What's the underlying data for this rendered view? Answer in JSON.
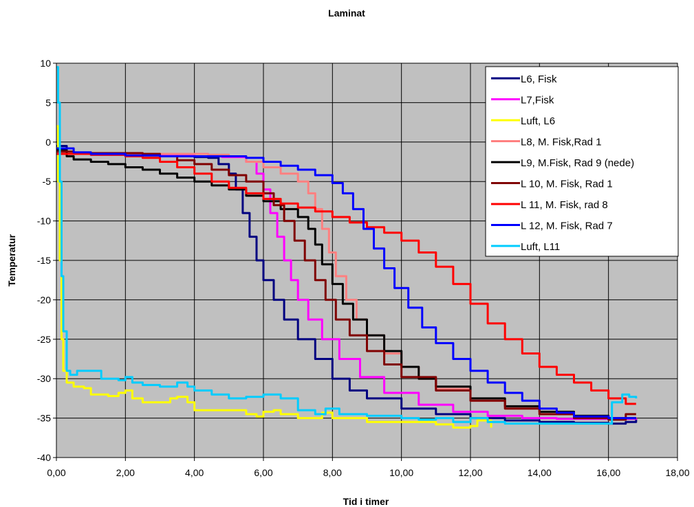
{
  "chart_data": {
    "type": "line",
    "title": "Laminat",
    "xlabel": "Tid i timer",
    "ylabel": "Temperatur",
    "xlim": [
      0,
      18
    ],
    "ylim": [
      -40,
      10
    ],
    "x_ticks": [
      "0,00",
      "2,00",
      "4,00",
      "6,00",
      "8,00",
      "10,00",
      "12,00",
      "14,00",
      "16,00",
      "18,00"
    ],
    "y_ticks": [
      "10",
      "5",
      "0",
      "-5",
      "-10",
      "-15",
      "-20",
      "-25",
      "-30",
      "-35",
      "-40"
    ],
    "grid": true,
    "legend_position": "top-right",
    "plot_background": "#c0c0c0",
    "series": [
      {
        "name": "L6, Fisk",
        "color": "#000080",
        "points": [
          [
            0,
            -0.5
          ],
          [
            0.3,
            -1.5
          ],
          [
            1,
            -1.6
          ],
          [
            2,
            -1.7
          ],
          [
            3,
            -1.8
          ],
          [
            4,
            -1.9
          ],
          [
            4.4,
            -2
          ],
          [
            4.7,
            -2.8
          ],
          [
            5,
            -4
          ],
          [
            5.2,
            -6
          ],
          [
            5.4,
            -9
          ],
          [
            5.6,
            -12
          ],
          [
            5.8,
            -15
          ],
          [
            6,
            -17.5
          ],
          [
            6.3,
            -20
          ],
          [
            6.6,
            -22.5
          ],
          [
            7,
            -25
          ],
          [
            7.5,
            -27.5
          ],
          [
            8,
            -30
          ],
          [
            8.5,
            -31.5
          ],
          [
            9,
            -32.5
          ],
          [
            10,
            -33.8
          ],
          [
            11,
            -34.5
          ],
          [
            12,
            -35
          ],
          [
            13,
            -35.3
          ],
          [
            14,
            -35.5
          ],
          [
            15,
            -35.6
          ],
          [
            16,
            -35.7
          ],
          [
            16.5,
            -35.5
          ],
          [
            16.8,
            -35.1
          ]
        ]
      },
      {
        "name": "L7,Fisk",
        "color": "#ff00ff",
        "points": [
          [
            0,
            -0.8
          ],
          [
            0.3,
            -1.4
          ],
          [
            1,
            -1.5
          ],
          [
            2,
            -1.6
          ],
          [
            3,
            -1.7
          ],
          [
            4,
            -1.8
          ],
          [
            4.8,
            -1.9
          ],
          [
            5.5,
            -2.5
          ],
          [
            5.8,
            -4
          ],
          [
            6,
            -6
          ],
          [
            6.2,
            -9
          ],
          [
            6.4,
            -12
          ],
          [
            6.6,
            -15
          ],
          [
            6.8,
            -17.5
          ],
          [
            7,
            -20
          ],
          [
            7.3,
            -22.5
          ],
          [
            7.7,
            -25
          ],
          [
            8.2,
            -27.5
          ],
          [
            8.8,
            -29.8
          ],
          [
            9.5,
            -31.8
          ],
          [
            10.5,
            -33.3
          ],
          [
            11.5,
            -34.2
          ],
          [
            12.5,
            -34.7
          ],
          [
            13.5,
            -35
          ],
          [
            14.5,
            -35.1
          ],
          [
            15.5,
            -35.1
          ],
          [
            16.5,
            -35.1
          ],
          [
            16.8,
            -35
          ]
        ]
      },
      {
        "name": "Luft, L6",
        "color": "#ffff00",
        "points": [
          [
            0,
            2
          ],
          [
            0.05,
            -5
          ],
          [
            0.1,
            -15
          ],
          [
            0.15,
            -25
          ],
          [
            0.2,
            -29
          ],
          [
            0.3,
            -30.5
          ],
          [
            0.5,
            -31
          ],
          [
            0.8,
            -31.2
          ],
          [
            1,
            -32
          ],
          [
            1.5,
            -32.2
          ],
          [
            1.8,
            -31.8
          ],
          [
            2,
            -31.5
          ],
          [
            2.2,
            -32.5
          ],
          [
            2.5,
            -33
          ],
          [
            3,
            -33
          ],
          [
            3.3,
            -32.5
          ],
          [
            3.5,
            -32.3
          ],
          [
            3.8,
            -33
          ],
          [
            4,
            -34
          ],
          [
            5,
            -34
          ],
          [
            5.5,
            -34.5
          ],
          [
            5.8,
            -34.8
          ],
          [
            6,
            -34.2
          ],
          [
            6.3,
            -34
          ],
          [
            6.5,
            -34.5
          ],
          [
            7,
            -35
          ],
          [
            7.5,
            -35
          ],
          [
            7.7,
            -34.3
          ],
          [
            8,
            -35
          ],
          [
            8.5,
            -35
          ],
          [
            9,
            -35.5
          ],
          [
            9.5,
            -35.5
          ],
          [
            10,
            -35.5
          ],
          [
            10.5,
            -35.5
          ],
          [
            11,
            -35.8
          ],
          [
            11.5,
            -36.2
          ],
          [
            12,
            -36
          ],
          [
            12.2,
            -35.3
          ],
          [
            12.6,
            -36.2
          ]
        ]
      },
      {
        "name": "L8, M. Fisk,Rad 1",
        "color": "#ff8080",
        "points": [
          [
            0,
            -1.4
          ],
          [
            1,
            -1.5
          ],
          [
            2,
            -1.5
          ],
          [
            3,
            -1.5
          ],
          [
            4,
            -1.5
          ],
          [
            4.4,
            -1.6
          ],
          [
            5,
            -1.8
          ],
          [
            5.5,
            -2.5
          ],
          [
            6,
            -3.2
          ],
          [
            6.5,
            -4
          ],
          [
            7,
            -5
          ],
          [
            7.3,
            -6.5
          ],
          [
            7.5,
            -8.5
          ],
          [
            7.7,
            -11
          ],
          [
            7.9,
            -14
          ],
          [
            8.1,
            -17
          ],
          [
            8.4,
            -20
          ],
          [
            8.7,
            -22.5
          ],
          [
            9,
            -24.5
          ],
          [
            9.5,
            -26.8
          ],
          [
            10,
            -28.5
          ],
          [
            10.5,
            -30
          ],
          [
            11,
            -31.3
          ],
          [
            12,
            -32.8
          ],
          [
            13,
            -33.8
          ],
          [
            14,
            -34.5
          ],
          [
            15,
            -34.8
          ],
          [
            16,
            -35
          ],
          [
            16.8,
            -35
          ]
        ]
      },
      {
        "name": "L9, M.Fisk, Rad 9 (nede)",
        "color": "#000000",
        "points": [
          [
            0,
            -1
          ],
          [
            0.3,
            -1.8
          ],
          [
            0.5,
            -2.2
          ],
          [
            1,
            -2.5
          ],
          [
            1.5,
            -2.8
          ],
          [
            2,
            -3.2
          ],
          [
            2.5,
            -3.5
          ],
          [
            3,
            -4
          ],
          [
            3.5,
            -4.5
          ],
          [
            4,
            -5
          ],
          [
            4.5,
            -5.5
          ],
          [
            5,
            -6
          ],
          [
            5.5,
            -6.8
          ],
          [
            6,
            -7.5
          ],
          [
            6.5,
            -8.5
          ],
          [
            7,
            -9.5
          ],
          [
            7.3,
            -11
          ],
          [
            7.5,
            -13
          ],
          [
            7.7,
            -15.5
          ],
          [
            8,
            -18
          ],
          [
            8.3,
            -20.5
          ],
          [
            8.6,
            -22.5
          ],
          [
            9,
            -24.5
          ],
          [
            9.5,
            -26.5
          ],
          [
            10,
            -28.5
          ],
          [
            10.5,
            -30
          ],
          [
            11,
            -31
          ],
          [
            12,
            -32.5
          ],
          [
            13,
            -33.5
          ],
          [
            14,
            -34.2
          ],
          [
            15,
            -34.7
          ],
          [
            16,
            -35
          ],
          [
            16.8,
            -35
          ]
        ]
      },
      {
        "name": "L 10, M. Fisk, Rad 1",
        "color": "#800000",
        "points": [
          [
            0,
            -1.2
          ],
          [
            0.5,
            -1.4
          ],
          [
            1,
            -1.4
          ],
          [
            2,
            -1.4
          ],
          [
            2.5,
            -1.5
          ],
          [
            3,
            -1.8
          ],
          [
            3.5,
            -2.3
          ],
          [
            4,
            -2.8
          ],
          [
            4.5,
            -3.5
          ],
          [
            5,
            -4.2
          ],
          [
            5.5,
            -5
          ],
          [
            6,
            -6.5
          ],
          [
            6.3,
            -8
          ],
          [
            6.6,
            -10
          ],
          [
            6.9,
            -12.5
          ],
          [
            7.2,
            -15
          ],
          [
            7.5,
            -17.5
          ],
          [
            7.8,
            -20
          ],
          [
            8.1,
            -22.5
          ],
          [
            8.5,
            -24.5
          ],
          [
            9,
            -26.5
          ],
          [
            9.5,
            -28.2
          ],
          [
            10,
            -29.8
          ],
          [
            11,
            -31.5
          ],
          [
            12,
            -32.8
          ],
          [
            13,
            -33.8
          ],
          [
            14,
            -34.5
          ],
          [
            15,
            -35
          ],
          [
            16,
            -35.2
          ],
          [
            16.5,
            -34.5
          ],
          [
            16.8,
            -34.5
          ]
        ]
      },
      {
        "name": "L 11, M. Fisk, rad 8",
        "color": "#ff0000",
        "points": [
          [
            0,
            -1.5
          ],
          [
            0.5,
            -1.5
          ],
          [
            1,
            -1.6
          ],
          [
            2,
            -1.8
          ],
          [
            2.5,
            -2
          ],
          [
            3,
            -2.5
          ],
          [
            3.5,
            -3.2
          ],
          [
            4,
            -4
          ],
          [
            4.5,
            -5
          ],
          [
            5,
            -5.8
          ],
          [
            5.5,
            -6.5
          ],
          [
            6,
            -7.2
          ],
          [
            6.5,
            -7.8
          ],
          [
            7,
            -8.3
          ],
          [
            7.5,
            -8.8
          ],
          [
            8,
            -9.5
          ],
          [
            8.5,
            -10.2
          ],
          [
            9,
            -10.8
          ],
          [
            9.5,
            -11.5
          ],
          [
            10,
            -12.5
          ],
          [
            10.5,
            -14
          ],
          [
            11,
            -15.8
          ],
          [
            11.5,
            -18
          ],
          [
            12,
            -20.5
          ],
          [
            12.5,
            -23
          ],
          [
            13,
            -25
          ],
          [
            13.5,
            -26.8
          ],
          [
            14,
            -28.5
          ],
          [
            14.5,
            -29.5
          ],
          [
            15,
            -30.5
          ],
          [
            15.5,
            -31.5
          ],
          [
            16,
            -32.5
          ],
          [
            16.5,
            -33.2
          ],
          [
            16.8,
            -33.2
          ]
        ]
      },
      {
        "name": "L 12, M. Fisk, Rad 7",
        "color": "#0000ff",
        "points": [
          [
            0,
            -0.8
          ],
          [
            0.5,
            -1.3
          ],
          [
            1,
            -1.5
          ],
          [
            2,
            -1.7
          ],
          [
            3,
            -1.8
          ],
          [
            4,
            -1.8
          ],
          [
            5,
            -1.8
          ],
          [
            5.5,
            -2
          ],
          [
            6,
            -2.5
          ],
          [
            6.5,
            -3
          ],
          [
            7,
            -3.5
          ],
          [
            7.5,
            -4.2
          ],
          [
            8,
            -5.2
          ],
          [
            8.3,
            -6.5
          ],
          [
            8.6,
            -8.5
          ],
          [
            8.9,
            -11
          ],
          [
            9.2,
            -13.5
          ],
          [
            9.5,
            -16
          ],
          [
            9.8,
            -18.5
          ],
          [
            10.2,
            -21
          ],
          [
            10.6,
            -23.5
          ],
          [
            11,
            -25.5
          ],
          [
            11.5,
            -27.5
          ],
          [
            12,
            -29
          ],
          [
            12.5,
            -30.5
          ],
          [
            13,
            -31.8
          ],
          [
            13.5,
            -32.8
          ],
          [
            14,
            -33.8
          ],
          [
            14.5,
            -34.3
          ],
          [
            15,
            -34.8
          ],
          [
            16,
            -35
          ],
          [
            16.8,
            -35
          ]
        ]
      },
      {
        "name": "Luft, L11",
        "color": "#00ccff",
        "points": [
          [
            0,
            9.5
          ],
          [
            0.05,
            5
          ],
          [
            0.1,
            -5
          ],
          [
            0.15,
            -17
          ],
          [
            0.2,
            -24
          ],
          [
            0.3,
            -29
          ],
          [
            0.4,
            -29.5
          ],
          [
            0.6,
            -29
          ],
          [
            1,
            -29
          ],
          [
            1.3,
            -30
          ],
          [
            1.8,
            -30.2
          ],
          [
            2,
            -29.8
          ],
          [
            2.2,
            -30.5
          ],
          [
            2.5,
            -30.8
          ],
          [
            3,
            -31
          ],
          [
            3.5,
            -30.5
          ],
          [
            3.8,
            -31
          ],
          [
            4,
            -31.5
          ],
          [
            4.5,
            -32
          ],
          [
            5,
            -32.5
          ],
          [
            5.5,
            -32.3
          ],
          [
            6,
            -32
          ],
          [
            6.5,
            -32.5
          ],
          [
            7,
            -34
          ],
          [
            7.5,
            -34.5
          ],
          [
            7.8,
            -33.8
          ],
          [
            8.2,
            -34.5
          ],
          [
            9,
            -34.7
          ],
          [
            10,
            -35
          ],
          [
            10.5,
            -35.2
          ],
          [
            11,
            -35
          ],
          [
            11.5,
            -35.5
          ],
          [
            12,
            -35
          ],
          [
            12.5,
            -35.5
          ],
          [
            13,
            -35.7
          ],
          [
            14,
            -35.7
          ],
          [
            15,
            -35.7
          ],
          [
            15.9,
            -35.7
          ],
          [
            16.1,
            -33
          ],
          [
            16.4,
            -32
          ],
          [
            16.6,
            -32.3
          ],
          [
            16.8,
            -32.5
          ]
        ]
      }
    ]
  }
}
